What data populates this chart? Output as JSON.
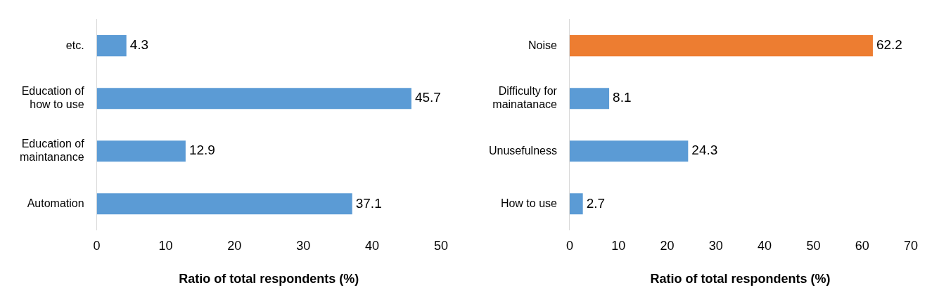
{
  "chart_data": [
    {
      "type": "bar",
      "orientation": "horizontal",
      "categories": [
        "etc.",
        "Education of how to use",
        "Education of maintanance",
        "Automation"
      ],
      "values": [
        4.3,
        45.7,
        12.9,
        37.1
      ],
      "color": "#5b9bd5",
      "xlim": [
        0,
        50
      ],
      "xticks": [
        0,
        10,
        20,
        30,
        40,
        50
      ],
      "xlabel": "Ratio of total respondents (%)",
      "data_labels": true,
      "grid": false,
      "legend": false
    },
    {
      "type": "bar",
      "orientation": "horizontal",
      "categories": [
        "Noise",
        "Difficulty for mainatanace",
        "Unusefulness",
        "How to use"
      ],
      "values": [
        62.2,
        8.1,
        24.3,
        2.7
      ],
      "colors": [
        "#ed7d31",
        "#5b9bd5",
        "#5b9bd5",
        "#5b9bd5"
      ],
      "xlim": [
        0,
        70
      ],
      "xticks": [
        0,
        10,
        20,
        30,
        40,
        50,
        60,
        70
      ],
      "xlabel": "Ratio of total respondents (%)",
      "data_labels": true,
      "grid": false,
      "legend": false
    }
  ]
}
